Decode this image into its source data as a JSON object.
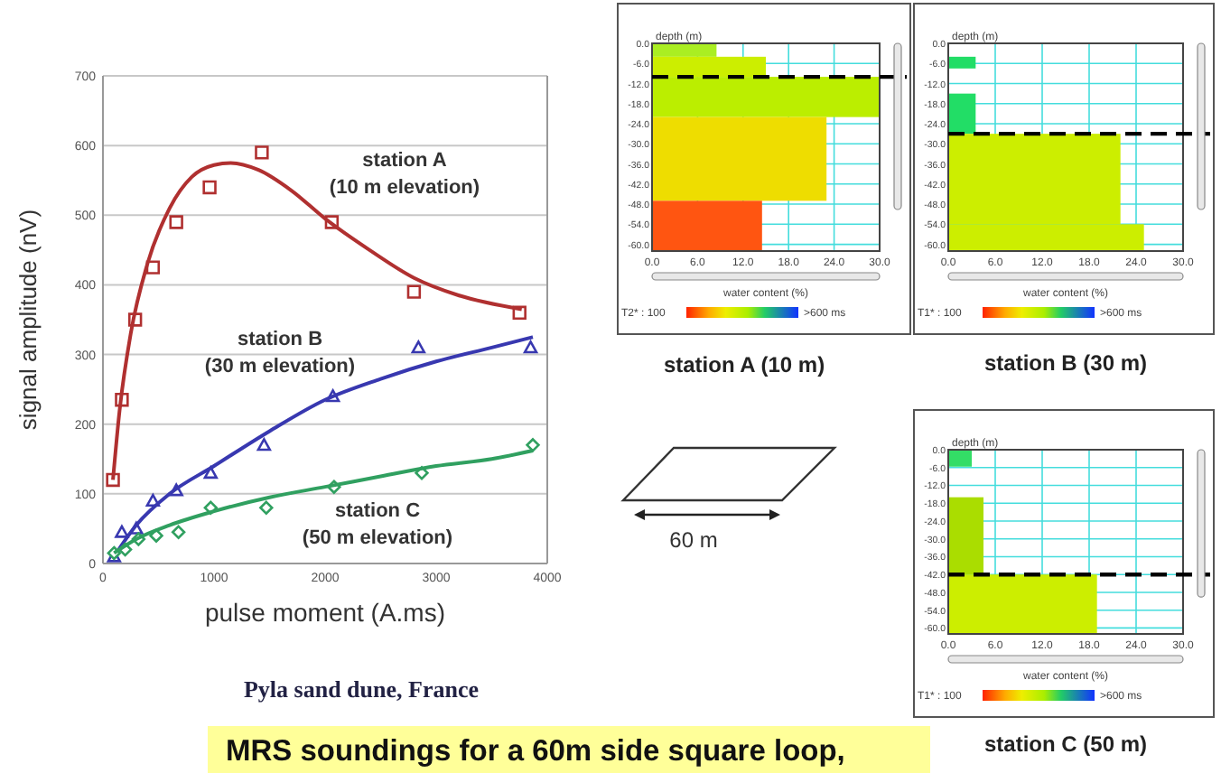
{
  "chart_data": [
    {
      "type": "scatter",
      "xlabel": "pulse moment (A.ms)",
      "ylabel": "signal amplitude (nV)",
      "xlim": [
        0,
        4000
      ],
      "xticks": [
        0,
        1000,
        2000,
        3000,
        4000
      ],
      "ylim": [
        0,
        700
      ],
      "yticks": [
        0,
        100,
        200,
        300,
        400,
        500,
        600,
        700
      ],
      "grid": "y",
      "series": [
        {
          "name": "station A (10 m elevation)",
          "type": "scatter",
          "marker": "square",
          "color": "#b03030",
          "x": [
            90,
            170,
            290,
            450,
            660,
            960,
            1430,
            2060,
            2800,
            3750
          ],
          "values": [
            120,
            235,
            350,
            425,
            490,
            540,
            590,
            490,
            390,
            360
          ]
        },
        {
          "type": "line",
          "color": "#b03030",
          "x": [
            90,
            150,
            250,
            400,
            600,
            800,
            1000,
            1150,
            1400,
            1700,
            2000,
            2400,
            2800,
            3200,
            3770
          ],
          "values": [
            120,
            220,
            330,
            430,
            510,
            555,
            572,
            575,
            565,
            535,
            495,
            450,
            410,
            385,
            365
          ]
        },
        {
          "name": "station B (30 m elevation)",
          "type": "scatter",
          "marker": "triangle",
          "color": "#3838b0",
          "x": [
            100,
            170,
            300,
            450,
            660,
            970,
            1450,
            2070,
            2840,
            3850
          ],
          "values": [
            10,
            45,
            50,
            90,
            105,
            130,
            170,
            240,
            310,
            310
          ]
        },
        {
          "type": "line",
          "color": "#3838b0",
          "x": [
            100,
            300,
            600,
            1000,
            1500,
            2000,
            2500,
            3000,
            3500,
            3870
          ],
          "values": [
            10,
            55,
            100,
            140,
            190,
            235,
            265,
            290,
            310,
            325
          ]
        },
        {
          "name": "station C (50 m elevation)",
          "type": "scatter",
          "marker": "diamond",
          "color": "#30a060",
          "x": [
            100,
            200,
            320,
            480,
            680,
            970,
            1470,
            2080,
            2870,
            3870
          ],
          "values": [
            15,
            20,
            35,
            40,
            45,
            80,
            80,
            110,
            130,
            170
          ]
        },
        {
          "type": "line",
          "color": "#30a060",
          "x": [
            100,
            300,
            600,
            1000,
            1500,
            2000,
            2500,
            3000,
            3500,
            3870
          ],
          "values": [
            15,
            35,
            55,
            75,
            95,
            110,
            125,
            140,
            150,
            162
          ]
        }
      ],
      "annotations": [
        "Pyla sand dune, France",
        "MRS soundings for a 60m side square loop,",
        "60 m"
      ]
    },
    {
      "type": "histogram",
      "orientation": "horizontal",
      "title": "station A (10 m)",
      "xlabel": "water content (%)",
      "ylabel": "depth (m)",
      "grid": true,
      "bins": [
        0,
        -4,
        -10,
        -22,
        -47,
        -62
      ],
      "values": [
        8.5,
        15,
        30,
        23,
        14.5
      ],
      "colors": [
        "#aaee22",
        "#ccee00",
        "#bbee00",
        "#eedd00",
        "#ff5511"
      ],
      "xlim": [
        0,
        30
      ],
      "xticks": [
        {
          "value": 0,
          "label": "0.0"
        },
        {
          "value": 6,
          "label": "6.0"
        },
        {
          "value": 12,
          "label": "12.0"
        },
        {
          "value": 18,
          "label": "18.0"
        },
        {
          "value": 24,
          "label": "24.0"
        },
        {
          "value": 30,
          "label": "30.0"
        }
      ],
      "ylim": [
        -62,
        0
      ],
      "yticks": [
        {
          "value": 0,
          "label": "0.0"
        },
        {
          "value": -6,
          "label": "-6.0"
        },
        {
          "value": -12,
          "label": "-12.0"
        },
        {
          "value": -18,
          "label": "-18.0"
        },
        {
          "value": -24,
          "label": "-24.0"
        },
        {
          "value": -30,
          "label": "-30.0"
        },
        {
          "value": -36,
          "label": "-36.0"
        },
        {
          "value": -42,
          "label": "-42.0"
        },
        {
          "value": -48,
          "label": "-48.0"
        },
        {
          "value": -54,
          "label": "-54.0"
        },
        {
          "value": -60,
          "label": "-60.0"
        }
      ],
      "ref_lines": [
        {
          "axis": "y",
          "value": -10,
          "line_style": "dashed",
          "color": "#000000"
        }
      ],
      "annotations": [
        "T2* : 100",
        ">600 ms"
      ]
    },
    {
      "type": "histogram",
      "orientation": "horizontal",
      "title": "station B (30 m)",
      "xlabel": "water content (%)",
      "ylabel": "depth (m)",
      "grid": true,
      "bins": [
        -4,
        -7.5,
        -15,
        -27,
        -54,
        -62
      ],
      "values": [
        3.5,
        0,
        3.5,
        22,
        25
      ],
      "colors": [
        "#22dd66",
        "#ffffff",
        "#22dd66",
        "#ccee00",
        "#ccee00"
      ],
      "xlim": [
        0,
        30
      ],
      "xticks": [
        {
          "value": 0,
          "label": "0.0"
        },
        {
          "value": 6,
          "label": "6.0"
        },
        {
          "value": 12,
          "label": "12.0"
        },
        {
          "value": 18,
          "label": "18.0"
        },
        {
          "value": 24,
          "label": "24.0"
        },
        {
          "value": 30,
          "label": "30.0"
        }
      ],
      "ylim": [
        -62,
        0
      ],
      "yticks": [
        {
          "value": 0,
          "label": "0.0"
        },
        {
          "value": -6,
          "label": "-6.0"
        },
        {
          "value": -12,
          "label": "-12.0"
        },
        {
          "value": -18,
          "label": "-18.0"
        },
        {
          "value": -24,
          "label": "-24.0"
        },
        {
          "value": -30,
          "label": "-30.0"
        },
        {
          "value": -36,
          "label": "-36.0"
        },
        {
          "value": -42,
          "label": "-42.0"
        },
        {
          "value": -48,
          "label": "-48.0"
        },
        {
          "value": -54,
          "label": "-54.0"
        },
        {
          "value": -60,
          "label": "-60.0"
        }
      ],
      "ref_lines": [
        {
          "axis": "y",
          "value": -27,
          "line_style": "dashed",
          "color": "#000000"
        }
      ],
      "annotations": [
        "T1* : 100",
        ">600 ms"
      ]
    },
    {
      "type": "histogram",
      "orientation": "horizontal",
      "title": "station C (50 m)",
      "xlabel": "water content (%)",
      "ylabel": "depth (m)",
      "grid": true,
      "bins": [
        0,
        -5.7,
        -16,
        -42,
        -62
      ],
      "values": [
        3,
        0,
        4.5,
        19
      ],
      "colors": [
        "#33dd66",
        "#ffffff",
        "#aadd00",
        "#ccee00"
      ],
      "xlim": [
        0,
        30
      ],
      "xticks": [
        {
          "value": 0,
          "label": "0.0"
        },
        {
          "value": 6,
          "label": "6.0"
        },
        {
          "value": 12,
          "label": "12.0"
        },
        {
          "value": 18,
          "label": "18.0"
        },
        {
          "value": 24,
          "label": "24.0"
        },
        {
          "value": 30,
          "label": "30.0"
        }
      ],
      "ylim": [
        -62,
        0
      ],
      "yticks": [
        {
          "value": 0,
          "label": "0.0"
        },
        {
          "value": -6,
          "label": "-6.0"
        },
        {
          "value": -12,
          "label": "-12.0"
        },
        {
          "value": -18,
          "label": "-18.0"
        },
        {
          "value": -24,
          "label": "-24.0"
        },
        {
          "value": -30,
          "label": "-30.0"
        },
        {
          "value": -36,
          "label": "-36.0"
        },
        {
          "value": -42,
          "label": "-42.0"
        },
        {
          "value": -48,
          "label": "-48.0"
        },
        {
          "value": -54,
          "label": "-54.0"
        },
        {
          "value": -60,
          "label": "-60.0"
        }
      ],
      "ref_lines": [
        {
          "axis": "y",
          "value": -42,
          "line_style": "dashed",
          "color": "#000000"
        }
      ],
      "annotations": [
        "T1* : 100",
        ">600 ms"
      ]
    }
  ]
}
